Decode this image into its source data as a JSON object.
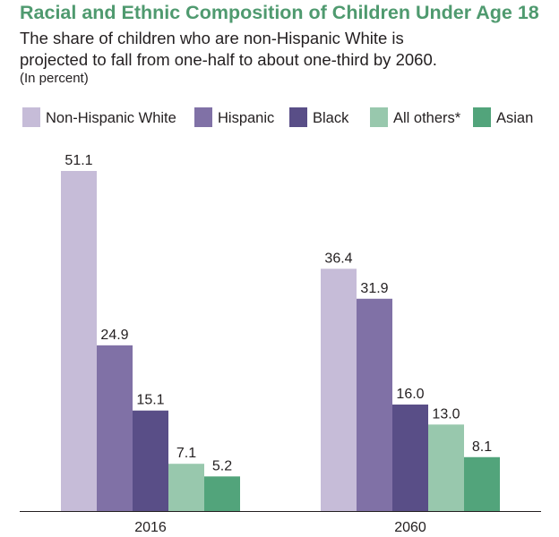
{
  "chart_data": {
    "type": "bar",
    "title": "Racial and Ethnic Composition of Children Under Age 18",
    "subtitle_lines": [
      "The share of children who are non-Hispanic White is",
      "projected to fall from one-half to about one-third by 2060."
    ],
    "units": "(In percent)",
    "categories": [
      "2016",
      "2060"
    ],
    "series": [
      {
        "name": "Non-Hispanic White",
        "color": "#c6bcd8",
        "values": [
          51.1,
          36.4
        ]
      },
      {
        "name": "Hispanic",
        "color": "#8071a6",
        "values": [
          24.9,
          31.9
        ]
      },
      {
        "name": "Black",
        "color": "#594e87",
        "values": [
          15.1,
          16.0
        ]
      },
      {
        "name": "All others*",
        "color": "#98c8ad",
        "values": [
          7.1,
          13.0
        ]
      },
      {
        "name": "Asian",
        "color": "#52a47b",
        "values": [
          5.2,
          8.1
        ]
      }
    ],
    "value_labels": [
      [
        "51.1",
        "36.4"
      ],
      [
        "24.9",
        "31.9"
      ],
      [
        "15.1",
        "16.0"
      ],
      [
        "7.1",
        "13.0"
      ],
      [
        "5.2",
        "8.1"
      ]
    ],
    "ylim": [
      0,
      51.1
    ],
    "xlabel": "",
    "ylabel": "",
    "grid": false,
    "legend": "top"
  }
}
